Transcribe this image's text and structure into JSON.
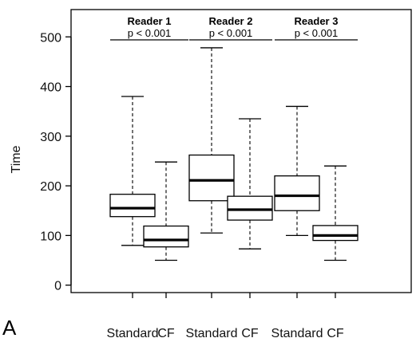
{
  "chart_data": {
    "type": "box",
    "panel_label": "A",
    "ylabel": "Time",
    "ylim": [
      -15,
      555
    ],
    "yticks": [
      0,
      100,
      200,
      300,
      400,
      500
    ],
    "categories": [
      "Standard",
      "CF",
      "Standard",
      "CF",
      "Standard",
      "CF"
    ],
    "boxes": [
      {
        "group": "Reader 1",
        "category": "Standard",
        "whisker_low": 80,
        "q1": 138,
        "median": 155,
        "q3": 183,
        "whisker_high": 380
      },
      {
        "group": "Reader 1",
        "category": "CF",
        "whisker_low": 50,
        "q1": 77,
        "median": 91,
        "q3": 119,
        "whisker_high": 248
      },
      {
        "group": "Reader 2",
        "category": "Standard",
        "whisker_low": 105,
        "q1": 170,
        "median": 211,
        "q3": 262,
        "whisker_high": 478
      },
      {
        "group": "Reader 2",
        "category": "CF",
        "whisker_low": 73,
        "q1": 131,
        "median": 152,
        "q3": 179,
        "whisker_high": 335
      },
      {
        "group": "Reader 3",
        "category": "Standard",
        "whisker_low": 100,
        "q1": 150,
        "median": 180,
        "q3": 220,
        "whisker_high": 360
      },
      {
        "group": "Reader 3",
        "category": "CF",
        "whisker_low": 50,
        "q1": 90,
        "median": 100,
        "q3": 120,
        "whisker_high": 240
      }
    ],
    "comparisons": [
      {
        "group": "Reader 1",
        "label": "Reader 1",
        "p": "p < 0.001"
      },
      {
        "group": "Reader 2",
        "label": "Reader 2",
        "p": "p < 0.001"
      },
      {
        "group": "Reader 3",
        "label": "Reader 3",
        "p": "p < 0.001"
      }
    ],
    "grid": false,
    "legend": "none"
  }
}
